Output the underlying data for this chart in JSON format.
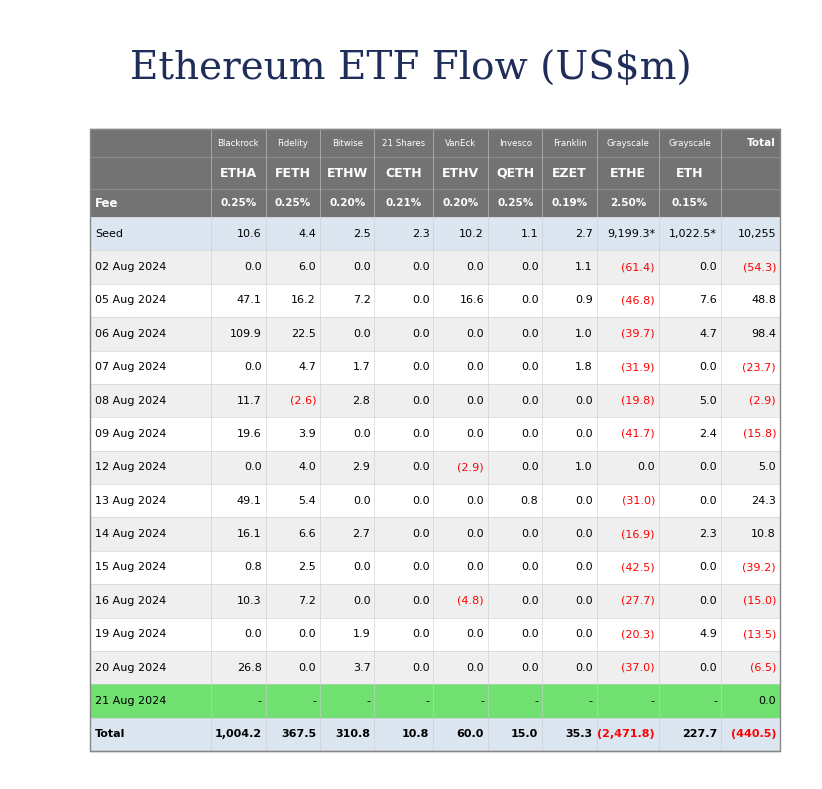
{
  "title": "Ethereum ETF Flow (US$m)",
  "header_row1": [
    "",
    "Blackrock",
    "Fidelity",
    "Bitwise",
    "21 Shares",
    "VanEck",
    "Invesco",
    "Franklin",
    "Grayscale",
    "Grayscale",
    "Total"
  ],
  "header_row2": [
    "",
    "ETHA",
    "FETH",
    "ETHW",
    "CETH",
    "ETHV",
    "QETH",
    "EZET",
    "ETHE",
    "ETH",
    ""
  ],
  "header_row3": [
    "Fee",
    "0.25%",
    "0.25%",
    "0.20%",
    "0.21%",
    "0.20%",
    "0.25%",
    "0.19%",
    "2.50%",
    "0.15%",
    ""
  ],
  "rows": [
    [
      "Seed",
      "10.6",
      "4.4",
      "2.5",
      "2.3",
      "10.2",
      "1.1",
      "2.7",
      "9,199.3*",
      "1,022.5*",
      "10,255"
    ],
    [
      "02 Aug 2024",
      "0.0",
      "6.0",
      "0.0",
      "0.0",
      "0.0",
      "0.0",
      "1.1",
      "(61.4)",
      "0.0",
      "(54.3)"
    ],
    [
      "05 Aug 2024",
      "47.1",
      "16.2",
      "7.2",
      "0.0",
      "16.6",
      "0.0",
      "0.9",
      "(46.8)",
      "7.6",
      "48.8"
    ],
    [
      "06 Aug 2024",
      "109.9",
      "22.5",
      "0.0",
      "0.0",
      "0.0",
      "0.0",
      "1.0",
      "(39.7)",
      "4.7",
      "98.4"
    ],
    [
      "07 Aug 2024",
      "0.0",
      "4.7",
      "1.7",
      "0.0",
      "0.0",
      "0.0",
      "1.8",
      "(31.9)",
      "0.0",
      "(23.7)"
    ],
    [
      "08 Aug 2024",
      "11.7",
      "(2.6)",
      "2.8",
      "0.0",
      "0.0",
      "0.0",
      "0.0",
      "(19.8)",
      "5.0",
      "(2.9)"
    ],
    [
      "09 Aug 2024",
      "19.6",
      "3.9",
      "0.0",
      "0.0",
      "0.0",
      "0.0",
      "0.0",
      "(41.7)",
      "2.4",
      "(15.8)"
    ],
    [
      "12 Aug 2024",
      "0.0",
      "4.0",
      "2.9",
      "0.0",
      "(2.9)",
      "0.0",
      "1.0",
      "0.0",
      "0.0",
      "5.0"
    ],
    [
      "13 Aug 2024",
      "49.1",
      "5.4",
      "0.0",
      "0.0",
      "0.0",
      "0.8",
      "0.0",
      "(31.0)",
      "0.0",
      "24.3"
    ],
    [
      "14 Aug 2024",
      "16.1",
      "6.6",
      "2.7",
      "0.0",
      "0.0",
      "0.0",
      "0.0",
      "(16.9)",
      "2.3",
      "10.8"
    ],
    [
      "15 Aug 2024",
      "0.8",
      "2.5",
      "0.0",
      "0.0",
      "0.0",
      "0.0",
      "0.0",
      "(42.5)",
      "0.0",
      "(39.2)"
    ],
    [
      "16 Aug 2024",
      "10.3",
      "7.2",
      "0.0",
      "0.0",
      "(4.8)",
      "0.0",
      "0.0",
      "(27.7)",
      "0.0",
      "(15.0)"
    ],
    [
      "19 Aug 2024",
      "0.0",
      "0.0",
      "1.9",
      "0.0",
      "0.0",
      "0.0",
      "0.0",
      "(20.3)",
      "4.9",
      "(13.5)"
    ],
    [
      "20 Aug 2024",
      "26.8",
      "0.0",
      "3.7",
      "0.0",
      "0.0",
      "0.0",
      "0.0",
      "(37.0)",
      "0.0",
      "(6.5)"
    ],
    [
      "21 Aug 2024",
      "-",
      "-",
      "-",
      "-",
      "-",
      "-",
      "-",
      "-",
      "-",
      "0.0"
    ],
    [
      "Total",
      "1,004.2",
      "367.5",
      "310.8",
      "10.8",
      "60.0",
      "15.0",
      "35.3",
      "(2,471.8)",
      "227.7",
      "(440.5)"
    ]
  ],
  "negative_color": "#ff0000",
  "positive_color": "#000000",
  "header_bg": "#737373",
  "header_fg": "#ffffff",
  "seed_bg": "#dce6f1",
  "total_bg": "#dce6f1",
  "highlight_bg": "#70e070",
  "alt_row_bg": "#efefef",
  "white_bg": "#ffffff",
  "title_color": "#1f2d5a",
  "col_widths": [
    1.6,
    0.72,
    0.72,
    0.72,
    0.78,
    0.72,
    0.72,
    0.72,
    0.82,
    0.82,
    0.78
  ]
}
